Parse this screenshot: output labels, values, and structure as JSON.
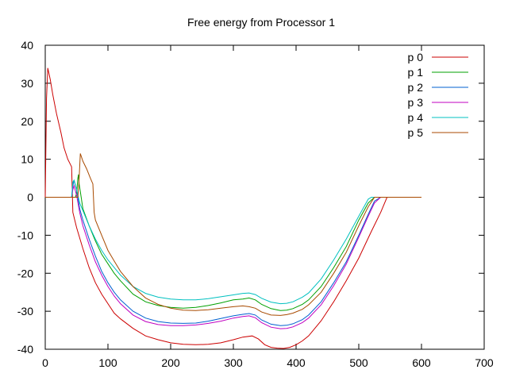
{
  "chart_data": {
    "type": "line",
    "title": "Free energy from Processor 1",
    "xlabel": "",
    "ylabel": "",
    "xlim": [
      0,
      700
    ],
    "ylim": [
      -40,
      40
    ],
    "xticks": [
      0,
      100,
      200,
      300,
      400,
      500,
      600,
      700
    ],
    "yticks": [
      -40,
      -30,
      -20,
      -10,
      0,
      10,
      20,
      30,
      40
    ],
    "grid": false,
    "legend_position": "top-right",
    "series": [
      {
        "name": "p 0",
        "color": "#cc0000",
        "x": [
          0,
          2,
          4,
          8,
          12,
          18,
          25,
          30,
          36,
          42,
          44,
          50,
          60,
          70,
          80,
          90,
          100,
          110,
          120,
          140,
          160,
          180,
          200,
          220,
          240,
          260,
          280,
          300,
          315,
          330,
          340,
          350,
          360,
          370,
          380,
          390,
          400,
          410,
          420,
          440,
          460,
          480,
          500,
          520,
          535,
          540,
          545,
          548,
          600
        ],
        "y": [
          0,
          26,
          34,
          31,
          27,
          22,
          17,
          13,
          10,
          8,
          -4,
          -8,
          -13.5,
          -18.5,
          -22.5,
          -25.5,
          -28,
          -30.5,
          -32,
          -34.5,
          -36.5,
          -37.5,
          -38.3,
          -38.7,
          -38.8,
          -38.7,
          -38.3,
          -37.5,
          -36.8,
          -36.5,
          -37.3,
          -38.8,
          -39.5,
          -39.7,
          -39.8,
          -39.5,
          -38.8,
          -37.8,
          -36.5,
          -32.5,
          -27.5,
          -22,
          -16,
          -9,
          -4,
          -2,
          0,
          0,
          0
        ]
      },
      {
        "name": "p 1",
        "color": "#00a000",
        "x": [
          0,
          48,
          50,
          52,
          53,
          54,
          56,
          60,
          70,
          80,
          90,
          100,
          110,
          120,
          140,
          160,
          180,
          200,
          220,
          240,
          260,
          280,
          300,
          315,
          325,
          335,
          345,
          360,
          375,
          385,
          395,
          410,
          420,
          440,
          460,
          480,
          500,
          515,
          525,
          530,
          600
        ],
        "y": [
          0,
          0,
          1,
          5,
          6,
          3.5,
          1.5,
          -3,
          -7.5,
          -11.5,
          -15,
          -17.5,
          -20,
          -22,
          -25.5,
          -27.5,
          -28.5,
          -29,
          -29.2,
          -29,
          -28.5,
          -27.8,
          -27,
          -26.8,
          -26.5,
          -27,
          -28.2,
          -29.3,
          -29.8,
          -29.7,
          -29.3,
          -28.2,
          -27,
          -23.5,
          -18.5,
          -13,
          -6,
          -1.5,
          0,
          0,
          0
        ]
      },
      {
        "name": "p 2",
        "color": "#0060d0",
        "x": [
          0,
          42,
          44,
          46,
          50,
          55,
          60,
          70,
          80,
          90,
          100,
          110,
          120,
          140,
          160,
          180,
          200,
          220,
          240,
          260,
          280,
          300,
          315,
          325,
          335,
          345,
          360,
          375,
          385,
          395,
          410,
          420,
          440,
          460,
          480,
          500,
          515,
          525,
          535,
          600
        ],
        "y": [
          0,
          0,
          3,
          4.5,
          2,
          -3,
          -6,
          -11,
          -15.5,
          -19.5,
          -22.5,
          -25,
          -27,
          -30,
          -31.8,
          -32.7,
          -33.1,
          -33.2,
          -33.1,
          -32.6,
          -31.9,
          -31.2,
          -30.8,
          -30.6,
          -31,
          -32.3,
          -33.4,
          -33.8,
          -33.7,
          -33.3,
          -32.2,
          -31,
          -27.5,
          -22.5,
          -17,
          -10,
          -4.5,
          -1,
          0,
          0
        ]
      },
      {
        "name": "p 3",
        "color": "#c000c0",
        "x": [
          0,
          42,
          44,
          46,
          50,
          55,
          60,
          70,
          80,
          90,
          100,
          110,
          120,
          140,
          160,
          180,
          200,
          220,
          240,
          260,
          280,
          300,
          315,
          325,
          335,
          345,
          360,
          375,
          385,
          395,
          410,
          420,
          440,
          460,
          480,
          500,
          515,
          525,
          535,
          600
        ],
        "y": [
          0,
          0,
          2,
          3,
          0.5,
          -4,
          -7.5,
          -12.5,
          -17,
          -20.5,
          -23.5,
          -26,
          -28,
          -31,
          -32.7,
          -33.5,
          -33.8,
          -33.8,
          -33.6,
          -33.2,
          -32.6,
          -31.8,
          -31.4,
          -31.2,
          -31.7,
          -33,
          -34.2,
          -34.6,
          -34.5,
          -34.1,
          -33,
          -31.8,
          -28.3,
          -23.3,
          -17.6,
          -10.5,
          -5,
          -1.5,
          0,
          0
        ]
      },
      {
        "name": "p 4",
        "color": "#00c0c0",
        "x": [
          0,
          42,
          44,
          46,
          50,
          55,
          60,
          70,
          80,
          90,
          100,
          110,
          120,
          140,
          160,
          180,
          200,
          220,
          240,
          260,
          280,
          300,
          315,
          325,
          335,
          345,
          360,
          375,
          385,
          395,
          410,
          420,
          440,
          460,
          480,
          500,
          510,
          515,
          520,
          600
        ],
        "y": [
          0,
          0,
          4,
          4.5,
          2,
          -1.5,
          -3.5,
          -7.5,
          -11,
          -14,
          -16.5,
          -18.5,
          -20.5,
          -23.5,
          -25.3,
          -26.3,
          -26.8,
          -27,
          -27,
          -26.7,
          -26.2,
          -25.7,
          -25.3,
          -25.2,
          -25.6,
          -26.6,
          -27.6,
          -28,
          -27.9,
          -27.5,
          -26.3,
          -25.2,
          -21.5,
          -16.5,
          -11,
          -5,
          -2,
          -0.5,
          0,
          0
        ]
      },
      {
        "name": "p 5",
        "color": "#a84a00",
        "x": [
          0,
          52,
          54,
          56,
          60,
          66,
          72,
          76,
          78,
          80,
          90,
          100,
          110,
          120,
          140,
          160,
          180,
          200,
          220,
          240,
          260,
          280,
          300,
          315,
          325,
          335,
          345,
          360,
          375,
          385,
          395,
          410,
          420,
          440,
          460,
          480,
          500,
          515,
          525,
          530,
          600
        ],
        "y": [
          0,
          0,
          5,
          11.5,
          9.5,
          7.5,
          5,
          3.5,
          -4,
          -6,
          -10,
          -14,
          -16.8,
          -19.5,
          -23.5,
          -26.5,
          -28.2,
          -29.2,
          -29.7,
          -29.8,
          -29.6,
          -29.2,
          -28.8,
          -28.6,
          -28.8,
          -29.2,
          -30.2,
          -31,
          -31.1,
          -30.9,
          -30.5,
          -29.5,
          -28.3,
          -25,
          -20,
          -14.5,
          -7.5,
          -2.5,
          0,
          0,
          0
        ]
      }
    ]
  }
}
